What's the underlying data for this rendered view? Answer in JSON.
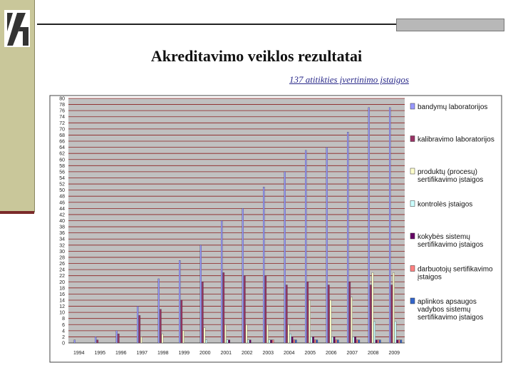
{
  "slide": {
    "title": "Akreditavimo veiklos rezultatai",
    "subtitle": "137 atitikties įvertinimo įstaigos"
  },
  "chart_data": {
    "type": "bar",
    "categories": [
      "1994",
      "1995",
      "1996",
      "1997",
      "1998",
      "1999",
      "2000",
      "2001",
      "2002",
      "2003",
      "2004",
      "2005",
      "2006",
      "2007",
      "2008",
      "2009"
    ],
    "series": [
      {
        "name": "bandymų laboratorijos",
        "color": "#9999ff",
        "values": [
          1,
          2,
          4,
          12,
          21,
          27,
          32,
          40,
          44,
          51,
          56,
          63,
          64,
          69,
          77,
          77
        ]
      },
      {
        "name": "kalibravimo laboratorijos",
        "color": "#993366",
        "values": [
          0,
          1,
          3,
          9,
          11,
          14,
          20,
          23,
          22,
          22,
          19,
          20,
          19,
          20,
          19,
          19
        ]
      },
      {
        "name": "produktų (procesų) sertifikavimo įstaigos",
        "color": "#ffffcc",
        "values": [
          0,
          0,
          0,
          2,
          3,
          4,
          5,
          6,
          6,
          6,
          6,
          14,
          14,
          15,
          23,
          23
        ]
      },
      {
        "name": "kontrolės įstaigos",
        "color": "#ccffff",
        "values": [
          0,
          0,
          0,
          0,
          0,
          0,
          1,
          1,
          1,
          1,
          3,
          2,
          2,
          2,
          7,
          7
        ]
      },
      {
        "name": "kokybės sistemų sertifikavimo įstaigos",
        "color": "#660066",
        "values": [
          0,
          0,
          0,
          0,
          0,
          0,
          0,
          1,
          1,
          1,
          2,
          2,
          2,
          2,
          1,
          1
        ]
      },
      {
        "name": "darbuotojų sertifikavimo įstaigos",
        "color": "#ff8080",
        "values": [
          0,
          0,
          0,
          0,
          0,
          0,
          0,
          0,
          0,
          1,
          1,
          1,
          1,
          1,
          1,
          1
        ]
      },
      {
        "name": "aplinkos apsaugos vadybos sistemų sertifikavimo įstaigos",
        "color": "#3366cc",
        "values": [
          0,
          0,
          0,
          0,
          0,
          0,
          0,
          0,
          0,
          0,
          1,
          1,
          1,
          1,
          1,
          1
        ]
      }
    ],
    "y_ticks": [
      0,
      2,
      4,
      6,
      8,
      10,
      12,
      14,
      16,
      18,
      20,
      22,
      24,
      26,
      28,
      30,
      32,
      34,
      36,
      38,
      40,
      42,
      44,
      46,
      48,
      50,
      52,
      54,
      56,
      58,
      60,
      62,
      64,
      66,
      68,
      70,
      72,
      74,
      76,
      78,
      80
    ],
    "ylim": [
      0,
      80
    ],
    "grid": true,
    "gridline_color": "#8b2020",
    "plot_background": "#c0c0c0",
    "legend_position": "right"
  }
}
